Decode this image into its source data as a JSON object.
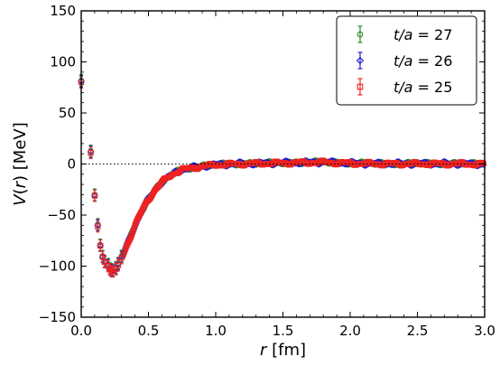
{
  "chart_data": {
    "type": "scatter",
    "xlabel": "r [fm]",
    "xlabel_var": "r",
    "xlabel_unit": " [fm]",
    "ylabel": "V(r) [MeV]",
    "ylabel_var_main": "V",
    "ylabel_var_arg": "r",
    "ylabel_unit": " [MeV]",
    "xlim": [
      0.0,
      3.0
    ],
    "ylim": [
      -150,
      150
    ],
    "x_ticks": [
      "0.0",
      "0.5",
      "1.0",
      "1.5",
      "2.0",
      "2.5",
      "3.0"
    ],
    "y_ticks": [
      "150",
      "100",
      "50",
      "0",
      "−50",
      "−100",
      "−150"
    ],
    "zero_line": true,
    "grid": false,
    "legend_position": "top-right",
    "series": [
      {
        "name": "t/a = 27",
        "label_var": "t/a",
        "label_value": "27",
        "color": "#2a8a2a",
        "marker": "circle",
        "points": [
          [
            0.0,
            82,
            3
          ],
          [
            0.071,
            13,
            3
          ],
          [
            0.1,
            -30,
            3
          ],
          [
            0.123,
            -59,
            3
          ],
          [
            0.142,
            -79,
            3
          ],
          [
            0.159,
            -90,
            3
          ],
          [
            0.174,
            -95,
            3
          ],
          [
            0.2,
            -98,
            3
          ],
          [
            0.213,
            -102,
            3
          ],
          [
            0.225,
            -103,
            3
          ],
          [
            0.236,
            -104,
            3
          ],
          [
            0.258,
            -101,
            3
          ],
          [
            0.275,
            -97,
            3
          ],
          [
            0.3,
            -90,
            3
          ]
        ]
      },
      {
        "name": "t/a = 26",
        "label_var": "t/a",
        "label_value": "26",
        "color": "#1f1fcc",
        "marker": "diamond",
        "points": [
          [
            0.0,
            81,
            3
          ],
          [
            0.071,
            12,
            3
          ],
          [
            0.1,
            -31,
            3
          ],
          [
            0.123,
            -60,
            3
          ],
          [
            0.142,
            -80,
            3
          ],
          [
            0.159,
            -91,
            3
          ],
          [
            0.174,
            -96,
            3
          ],
          [
            0.2,
            -99,
            3
          ],
          [
            0.213,
            -103,
            3
          ],
          [
            0.225,
            -104,
            3
          ],
          [
            0.236,
            -105,
            3
          ],
          [
            0.258,
            -102,
            3
          ],
          [
            0.275,
            -98,
            3
          ],
          [
            0.3,
            -91,
            3
          ]
        ]
      },
      {
        "name": "t/a = 25",
        "label_var": "t/a",
        "label_value": "25",
        "color": "#ee2222",
        "marker": "square",
        "points": [
          [
            0.0,
            80,
            3
          ],
          [
            0.071,
            11,
            3
          ],
          [
            0.1,
            -31,
            3
          ],
          [
            0.123,
            -61,
            3
          ],
          [
            0.142,
            -80,
            3
          ],
          [
            0.159,
            -91,
            3
          ],
          [
            0.174,
            -96,
            3
          ],
          [
            0.2,
            -100,
            3
          ],
          [
            0.213,
            -103,
            3
          ],
          [
            0.225,
            -105,
            3
          ],
          [
            0.236,
            -105,
            3
          ],
          [
            0.258,
            -103,
            3
          ],
          [
            0.275,
            -99,
            3
          ],
          [
            0.3,
            -92,
            3
          ]
        ]
      }
    ],
    "dense_band": {
      "description_hidden": true,
      "curve": [
        [
          0.25,
          -104
        ],
        [
          0.3,
          -92
        ],
        [
          0.35,
          -76
        ],
        [
          0.4,
          -60
        ],
        [
          0.45,
          -46
        ],
        [
          0.5,
          -34
        ],
        [
          0.55,
          -25
        ],
        [
          0.6,
          -18
        ],
        [
          0.65,
          -12
        ],
        [
          0.7,
          -8
        ],
        [
          0.75,
          -5.5
        ],
        [
          0.8,
          -4
        ],
        [
          0.9,
          -2
        ],
        [
          1.0,
          -0.5
        ],
        [
          1.2,
          0.5
        ],
        [
          1.4,
          1
        ],
        [
          1.6,
          1.5
        ],
        [
          1.8,
          2
        ],
        [
          2.0,
          1
        ],
        [
          2.2,
          0.5
        ],
        [
          2.5,
          0.5
        ],
        [
          2.8,
          0.5
        ],
        [
          3.0,
          0
        ]
      ]
    }
  }
}
